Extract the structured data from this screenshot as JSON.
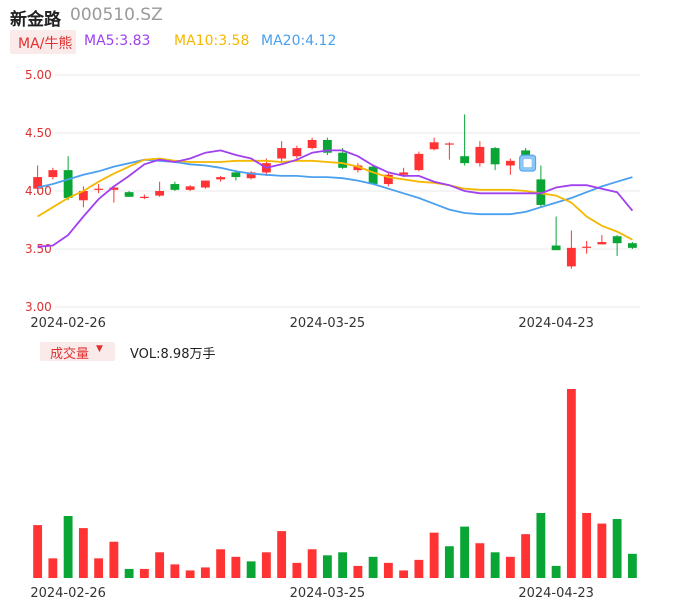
{
  "header": {
    "stock_name": "新金路",
    "stock_code": "000510.SZ",
    "ma_type": "MA/牛熊",
    "ma5": "MA5:3.83",
    "ma10": "MA10:3.58",
    "ma20": "MA20:4.12"
  },
  "volume_panel": {
    "tab_label": "成交量",
    "vol_readout": "VOL:8.98万手"
  },
  "colors": {
    "up": "#ff3333",
    "down": "#09a535",
    "ma5": "#a040f0",
    "ma10": "#f5b800",
    "ma20": "#4aa0ee",
    "grid": "#e8e8e8"
  },
  "chart_data": [
    {
      "type": "candlestick",
      "title": "",
      "y_ticks": [
        "5.00",
        "4.50",
        "4.00",
        "3.50",
        "3.00"
      ],
      "ylim": [
        3.0,
        5.0
      ],
      "x_labels": [
        "2024-02-26",
        "2024-03-25",
        "2024-04-23"
      ],
      "x_label_index": [
        2,
        19,
        34
      ],
      "candles": [
        {
          "o": 4.02,
          "h": 4.22,
          "l": 3.98,
          "c": 4.12
        },
        {
          "o": 4.12,
          "h": 4.2,
          "l": 4.1,
          "c": 4.18
        },
        {
          "o": 4.18,
          "h": 4.3,
          "l": 3.92,
          "c": 3.94
        },
        {
          "o": 3.92,
          "h": 4.04,
          "l": 3.86,
          "c": 4.0
        },
        {
          "o": 4.01,
          "h": 4.06,
          "l": 3.98,
          "c": 4.02
        },
        {
          "o": 4.01,
          "h": 4.04,
          "l": 3.9,
          "c": 4.03
        },
        {
          "o": 3.99,
          "h": 4.0,
          "l": 3.95,
          "c": 3.95
        },
        {
          "o": 3.95,
          "h": 3.97,
          "l": 3.93,
          "c": 3.95
        },
        {
          "o": 3.96,
          "h": 4.08,
          "l": 3.95,
          "c": 4.0
        },
        {
          "o": 4.06,
          "h": 4.08,
          "l": 4.0,
          "c": 4.01
        },
        {
          "o": 4.01,
          "h": 4.05,
          "l": 4.0,
          "c": 4.04
        },
        {
          "o": 4.03,
          "h": 4.09,
          "l": 4.02,
          "c": 4.09
        },
        {
          "o": 4.1,
          "h": 4.13,
          "l": 4.08,
          "c": 4.12
        },
        {
          "o": 4.16,
          "h": 4.18,
          "l": 4.09,
          "c": 4.12
        },
        {
          "o": 4.11,
          "h": 4.17,
          "l": 4.1,
          "c": 4.16
        },
        {
          "o": 4.16,
          "h": 4.28,
          "l": 4.13,
          "c": 4.24
        },
        {
          "o": 4.28,
          "h": 4.43,
          "l": 4.24,
          "c": 4.37
        },
        {
          "o": 4.3,
          "h": 4.39,
          "l": 4.28,
          "c": 4.37
        },
        {
          "o": 4.37,
          "h": 4.46,
          "l": 4.36,
          "c": 4.44
        },
        {
          "o": 4.44,
          "h": 4.46,
          "l": 4.31,
          "c": 4.33
        },
        {
          "o": 4.33,
          "h": 4.37,
          "l": 4.19,
          "c": 4.2
        },
        {
          "o": 4.18,
          "h": 4.24,
          "l": 4.16,
          "c": 4.22
        },
        {
          "o": 4.21,
          "h": 4.22,
          "l": 4.06,
          "c": 4.06
        },
        {
          "o": 4.06,
          "h": 4.16,
          "l": 4.04,
          "c": 4.14
        },
        {
          "o": 4.14,
          "h": 4.2,
          "l": 4.12,
          "c": 4.16
        },
        {
          "o": 4.18,
          "h": 4.34,
          "l": 4.17,
          "c": 4.32
        },
        {
          "o": 4.36,
          "h": 4.46,
          "l": 4.35,
          "c": 4.42
        },
        {
          "o": 4.4,
          "h": 4.42,
          "l": 4.27,
          "c": 4.41
        },
        {
          "o": 4.3,
          "h": 4.66,
          "l": 4.22,
          "c": 4.24
        },
        {
          "o": 4.24,
          "h": 4.43,
          "l": 4.21,
          "c": 4.38
        },
        {
          "o": 4.37,
          "h": 4.38,
          "l": 4.18,
          "c": 4.23
        },
        {
          "o": 4.22,
          "h": 4.28,
          "l": 4.14,
          "c": 4.26
        },
        {
          "o": 4.35,
          "h": 4.37,
          "l": 4.26,
          "c": 4.31
        },
        {
          "o": 4.1,
          "h": 4.22,
          "l": 3.86,
          "c": 3.88
        },
        {
          "o": 3.53,
          "h": 3.78,
          "l": 3.49,
          "c": 3.49
        },
        {
          "o": 3.35,
          "h": 3.66,
          "l": 3.33,
          "c": 3.51
        },
        {
          "o": 3.51,
          "h": 3.57,
          "l": 3.46,
          "c": 3.52
        },
        {
          "o": 3.54,
          "h": 3.62,
          "l": 3.54,
          "c": 3.56
        },
        {
          "o": 3.61,
          "h": 3.62,
          "l": 3.44,
          "c": 3.55
        },
        {
          "o": 3.55,
          "h": 3.56,
          "l": 3.5,
          "c": 3.51
        }
      ],
      "ma5": [
        3.52,
        3.53,
        3.62,
        3.78,
        3.93,
        4.04,
        4.13,
        4.23,
        4.27,
        4.25,
        4.28,
        4.33,
        4.35,
        4.31,
        4.28,
        4.2,
        4.23,
        4.27,
        4.33,
        4.35,
        4.35,
        4.3,
        4.22,
        4.16,
        4.13,
        4.13,
        4.08,
        4.05,
        4.0,
        3.98,
        3.98,
        3.98,
        3.98,
        3.98,
        4.03,
        4.05,
        4.05,
        4.02,
        3.99,
        3.83
      ],
      "ma10": [
        3.78,
        3.86,
        3.94,
        4.0,
        4.08,
        4.15,
        4.21,
        4.27,
        4.28,
        4.26,
        4.25,
        4.25,
        4.25,
        4.26,
        4.26,
        4.26,
        4.25,
        4.26,
        4.26,
        4.25,
        4.24,
        4.21,
        4.16,
        4.12,
        4.1,
        4.08,
        4.07,
        4.05,
        4.02,
        4.01,
        4.01,
        4.01,
        4.0,
        3.98,
        3.96,
        3.9,
        3.78,
        3.7,
        3.65,
        3.58
      ],
      "ma20": [
        4.03,
        4.06,
        4.1,
        4.14,
        4.17,
        4.21,
        4.24,
        4.27,
        4.26,
        4.25,
        4.23,
        4.22,
        4.2,
        4.17,
        4.15,
        4.14,
        4.13,
        4.13,
        4.12,
        4.12,
        4.11,
        4.09,
        4.06,
        4.02,
        3.98,
        3.94,
        3.89,
        3.84,
        3.81,
        3.8,
        3.8,
        3.8,
        3.82,
        3.86,
        3.9,
        3.94,
        3.99,
        4.04,
        4.08,
        4.12
      ]
    },
    {
      "type": "bar",
      "title": "",
      "x_labels": [
        "2024-02-26",
        "2024-03-25",
        "2024-04-23"
      ],
      "values": [
        3.5,
        1.3,
        4.1,
        3.3,
        1.3,
        2.4,
        0.6,
        0.6,
        1.7,
        0.9,
        0.5,
        0.7,
        1.9,
        1.4,
        1.1,
        1.7,
        3.1,
        1.0,
        1.9,
        1.5,
        1.7,
        0.8,
        1.4,
        1.0,
        0.5,
        1.2,
        3.0,
        2.1,
        3.4,
        2.3,
        1.7,
        1.4,
        2.9,
        4.3,
        0.8,
        12.5,
        4.3,
        3.6,
        3.9,
        1.6
      ],
      "direction": [
        "up",
        "up",
        "down",
        "up",
        "up",
        "up",
        "down",
        "up",
        "up",
        "up",
        "up",
        "up",
        "up",
        "up",
        "down",
        "up",
        "up",
        "up",
        "up",
        "down",
        "down",
        "up",
        "down",
        "up",
        "up",
        "up",
        "up",
        "down",
        "down",
        "up",
        "down",
        "up",
        "up",
        "down",
        "down",
        "up",
        "up",
        "up",
        "down",
        "down"
      ]
    }
  ]
}
